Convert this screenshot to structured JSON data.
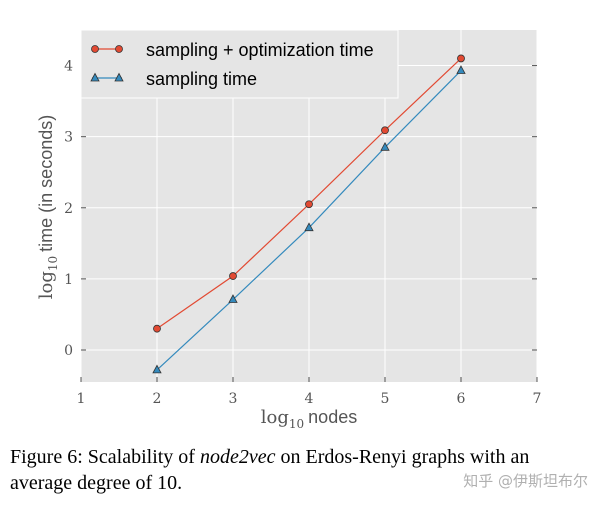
{
  "chart_data": {
    "type": "line",
    "x": [
      2,
      3,
      4,
      5,
      6
    ],
    "xlim": [
      1,
      7
    ],
    "ylim": [
      -0.45,
      4.5
    ],
    "xticks": [
      1,
      2,
      3,
      4,
      5,
      6,
      7
    ],
    "yticks": [
      0,
      1,
      2,
      3,
      4
    ],
    "xlabel_math": "log",
    "xlabel_sub": "10",
    "xlabel_text": "nodes",
    "ylabel_math": "log",
    "ylabel_sub": "10",
    "ylabel_text": "time (in seconds)",
    "grid": true,
    "legend_position": "top-left",
    "series": [
      {
        "name": "sampling + optimization time",
        "values": [
          0.3,
          1.04,
          2.05,
          3.09,
          4.1
        ],
        "color": "#e24a33",
        "marker": "circle"
      },
      {
        "name": "sampling time",
        "values": [
          -0.28,
          0.71,
          1.72,
          2.85,
          3.93
        ],
        "color": "#348abd",
        "marker": "triangle"
      }
    ]
  },
  "caption": {
    "prefix": "Figure 6: Scalability of ",
    "emphasis": "node2vec",
    "suffix": " on Erdos-Renyi graphs with an average degree of 10."
  },
  "watermark": "知乎 @伊斯坦布尔"
}
